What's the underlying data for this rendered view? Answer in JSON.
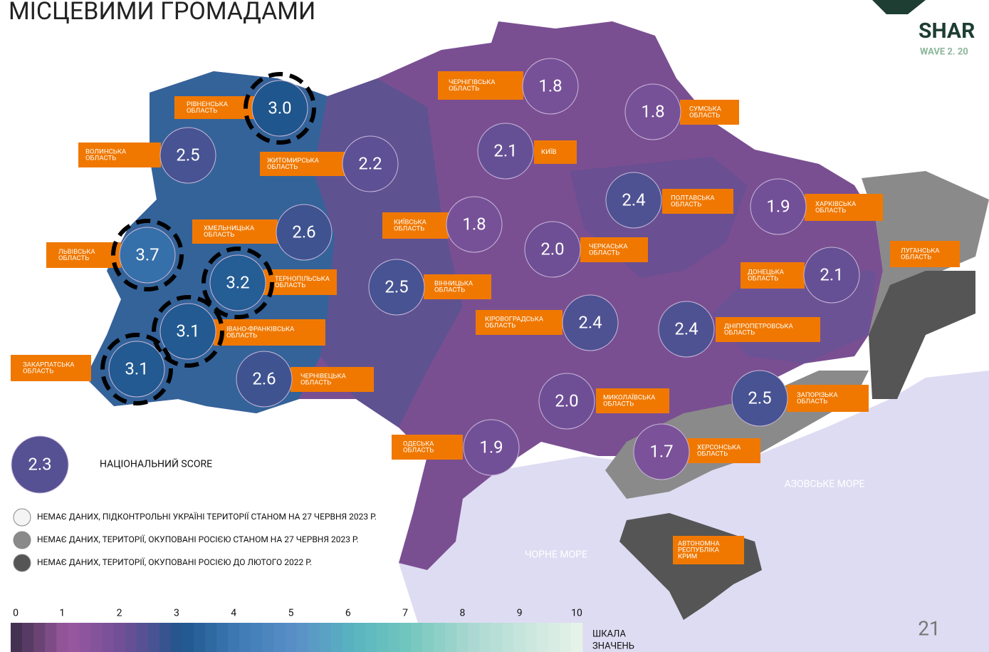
{
  "header": {
    "title": "МІСЦЕВИМИ ГРОМАДАМИ",
    "logo": "SHAR",
    "logo_sub": "WAVE 2. 20"
  },
  "regions": [
    {
      "label": [
        "РІВНЕНСЬКА",
        "ОБЛАСТЬ"
      ],
      "score": "3.0",
      "highlighted": true
    },
    {
      "label": [
        "ВОЛИНСЬКА",
        "ОБЛАСТЬ"
      ],
      "score": "2.5"
    },
    {
      "label": [
        "ЖИТОМИРСЬКА",
        "ОБЛАСТЬ"
      ],
      "score": "2.2"
    },
    {
      "label": [
        "ЛЬВІВСЬКА",
        "ОБЛАСТЬ"
      ],
      "score": "3.7",
      "highlighted": true
    },
    {
      "label": [
        "ХМЕЛЬНИЦЬКА",
        "ОБЛАСТЬ"
      ],
      "score": "2.6"
    },
    {
      "label": [
        "ТЕРНОПІЛЬСЬКА",
        "ОБЛАСТЬ"
      ],
      "score": "3.2",
      "highlighted": true
    },
    {
      "label": [
        "ІВАНО-ФРАНКІВСЬКА",
        "ОБЛАСТЬ"
      ],
      "score": "3.1",
      "highlighted": true
    },
    {
      "label": [
        "ЗАКАРПАТСЬКА",
        "ОБЛАСТЬ"
      ],
      "score": "3.1",
      "highlighted": true
    },
    {
      "label": [
        "ЧЕРНІВЕЦЬКА",
        "ОБЛАСТЬ"
      ],
      "score": "2.6"
    },
    {
      "label": [
        "ЧЕРНІГІВСЬКА",
        "ОБЛАСТЬ"
      ],
      "score": "1.8"
    },
    {
      "label": [
        "СУМСЬКА",
        "ОБЛАСТЬ"
      ],
      "score": "1.8"
    },
    {
      "label": [
        "КИЇВ"
      ],
      "score": "2.1"
    },
    {
      "label": [
        "КИЇВСЬКА",
        "ОБЛАСТЬ"
      ],
      "score": "1.8"
    },
    {
      "label": [
        "ПОЛТАВСЬКА",
        "ОБЛАСТЬ"
      ],
      "score": "2.4"
    },
    {
      "label": [
        "ХАРКІВСЬКА",
        "ОБЛАСТЬ"
      ],
      "score": "1.9"
    },
    {
      "label": [
        "ЧЕРКАСЬКА",
        "ОБЛАСТЬ"
      ],
      "score": "2.0"
    },
    {
      "label": [
        "ВІННИЦЬКА",
        "ОБЛАСТЬ"
      ],
      "score": "2.5"
    },
    {
      "label": [
        "ДОНЕЦЬКА",
        "ОБЛАСТЬ"
      ],
      "score": "2.1"
    },
    {
      "label": [
        "КІРОВОГРАДСЬКА",
        "ОБЛАСТЬ"
      ],
      "score": "2.4"
    },
    {
      "label": [
        "ДНІПРОПЕТРОВСЬКА",
        "ОБЛАСТЬ"
      ],
      "score": "2.4"
    },
    {
      "label": [
        "МИКОЛАЇВСЬКА",
        "ОБЛАСТЬ"
      ],
      "score": "2.0"
    },
    {
      "label": [
        "ЗАПОРІЗЬКА",
        "ОБЛАСТЬ"
      ],
      "score": "2.5"
    },
    {
      "label": [
        "ОДЕСЬКА",
        "ОБЛАСТЬ"
      ],
      "score": "1.9"
    },
    {
      "label": [
        "ХЕРСОНСЬКА",
        "ОБЛАСТЬ"
      ],
      "score": "1.7"
    },
    {
      "label": [
        "ЛУГАНСЬКА",
        "ОБЛАСТЬ"
      ]
    },
    {
      "label": [
        "АВТОНОМНА",
        "РЕСПУБЛІКА",
        "КРИМ"
      ]
    }
  ],
  "seas": [
    "АЗОВСЬКЕ МОРЕ",
    "ЧОРНЕ МОРЕ"
  ],
  "national": {
    "score": "2.3",
    "label": "НАЦІОНАЛЬНИЙ SCORE"
  },
  "legend": [
    {
      "label": "НЕМАЄ ДАНИХ, ПІДКОНТРОЛЬНІ УКРАЇНІ ТЕРИТОРІЇ СТАНОМ НА 27 ЧЕРВНЯ 2023 Р.",
      "color": "#f4f4f4"
    },
    {
      "label": "НЕМАЄ ДАНИХ, ТЕРИТОРІЇ, ОКУПОВАНІ РОСІЄЮ СТАНОМ НА 27 ЧЕРВНЯ 2023 Р.",
      "color": "#8a8a8a"
    },
    {
      "label": "НЕМАЄ ДАНИХ, ТЕРИТОРІЇ, ОКУПОВАНІ РОСІЄЮ ДО ЛЮТОГО 2022 Р.",
      "color": "#555555"
    }
  ],
  "scale": {
    "ticks": [
      0,
      1,
      2,
      3,
      4,
      5,
      6,
      7,
      8,
      9,
      10
    ],
    "label": [
      "ШКАЛА",
      "ЗНАЧЕНЬ"
    ]
  },
  "page_number": "21"
}
